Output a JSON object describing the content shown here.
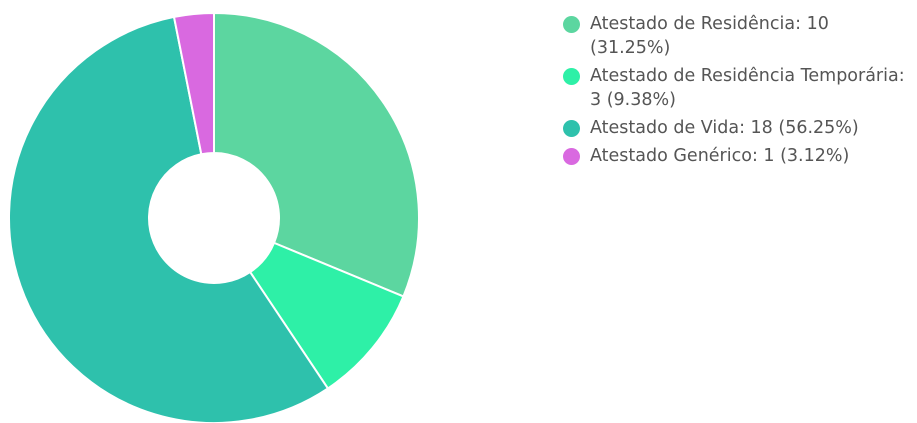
{
  "chart_data": {
    "type": "pie",
    "variant": "donut",
    "categories": [
      "Atestado de Residência",
      "Atestado de Residência Temporária",
      "Atestado de Vida",
      "Atestado Genérico"
    ],
    "values": [
      10,
      3,
      18,
      1
    ],
    "percentages": [
      31.25,
      9.38,
      56.25,
      3.12
    ],
    "legend_labels": [
      "Atestado de Residência: 10 (31.25%)",
      "Atestado de Residência Temporária: 3 (9.38%)",
      "Atestado de Vida: 18 (56.25%)",
      "Atestado Genérico: 1 (3.12%)"
    ],
    "colors": [
      "#5cd6a0",
      "#2ef0a7",
      "#2ec1ac",
      "#d969e0"
    ],
    "legend_position": "right",
    "title": ""
  }
}
